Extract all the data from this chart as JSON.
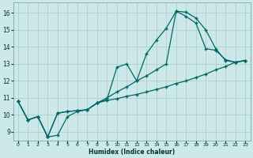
{
  "title": "",
  "xlabel": "Humidex (Indice chaleur)",
  "background_color": "#cce8e8",
  "grid_color": "#b0d0d0",
  "line_color": "#006868",
  "xlim": [
    -0.5,
    23.5
  ],
  "ylim": [
    8.5,
    16.6
  ],
  "xticks": [
    0,
    1,
    2,
    3,
    4,
    5,
    6,
    7,
    8,
    9,
    10,
    11,
    12,
    13,
    14,
    15,
    16,
    17,
    18,
    19,
    20,
    21,
    22,
    23
  ],
  "yticks": [
    9,
    10,
    11,
    12,
    13,
    14,
    15,
    16
  ],
  "line1_x": [
    0,
    1,
    2,
    3,
    4,
    5,
    6,
    7,
    8,
    9,
    10,
    11,
    12,
    13,
    14,
    15,
    16,
    17,
    18,
    19,
    20,
    21,
    22,
    23
  ],
  "line1_y": [
    10.8,
    9.7,
    9.9,
    8.7,
    8.8,
    9.9,
    10.2,
    10.3,
    10.7,
    10.9,
    12.8,
    13.0,
    12.0,
    13.6,
    14.4,
    15.1,
    16.1,
    16.05,
    15.7,
    15.0,
    13.9,
    13.2,
    13.1,
    13.2
  ],
  "line2_x": [
    0,
    1,
    2,
    3,
    4,
    5,
    6,
    7,
    8,
    9,
    10,
    11,
    12,
    13,
    14,
    15,
    16,
    17,
    18,
    19,
    20,
    21,
    22,
    23
  ],
  "line2_y": [
    10.8,
    9.7,
    9.9,
    8.7,
    10.1,
    10.2,
    10.25,
    10.3,
    10.7,
    10.85,
    10.95,
    11.1,
    11.2,
    11.35,
    11.5,
    11.65,
    11.85,
    12.0,
    12.2,
    12.4,
    12.65,
    12.85,
    13.1,
    13.2
  ],
  "line3_x": [
    0,
    1,
    2,
    3,
    4,
    5,
    6,
    7,
    8,
    9,
    10,
    11,
    12,
    13,
    14,
    15,
    16,
    17,
    18,
    19,
    20,
    21,
    22,
    23
  ],
  "line3_y": [
    10.8,
    9.7,
    9.9,
    8.7,
    10.1,
    10.2,
    10.25,
    10.3,
    10.7,
    11.0,
    11.35,
    11.65,
    12.0,
    12.3,
    12.65,
    13.0,
    16.1,
    15.8,
    15.4,
    13.9,
    13.8,
    13.25,
    13.1,
    13.2
  ]
}
